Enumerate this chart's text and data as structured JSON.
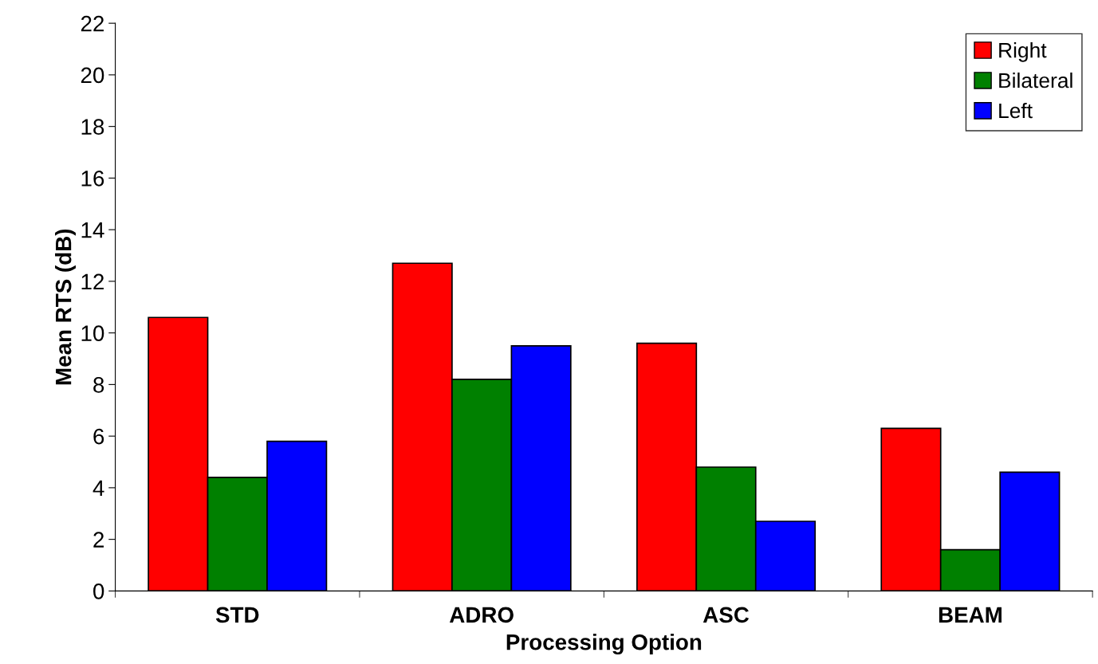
{
  "chart_data": {
    "type": "bar",
    "xlabel": "Processing Option",
    "ylabel": "Mean RTS (dB)",
    "categories": [
      "STD",
      "ADRO",
      "ASC",
      "BEAM"
    ],
    "series": [
      {
        "name": "Right",
        "color": "#ff0000",
        "values": [
          10.6,
          12.7,
          9.6,
          6.3
        ]
      },
      {
        "name": "Bilateral",
        "color": "#008000",
        "values": [
          4.4,
          8.2,
          4.8,
          1.6
        ]
      },
      {
        "name": "Left",
        "color": "#0000ff",
        "values": [
          5.8,
          9.5,
          2.7,
          4.6
        ]
      }
    ],
    "ylim": [
      0,
      22
    ],
    "yticks": [
      0,
      2,
      4,
      6,
      8,
      10,
      12,
      14,
      16,
      18,
      20,
      22
    ],
    "grid": false,
    "legend": "top right"
  }
}
